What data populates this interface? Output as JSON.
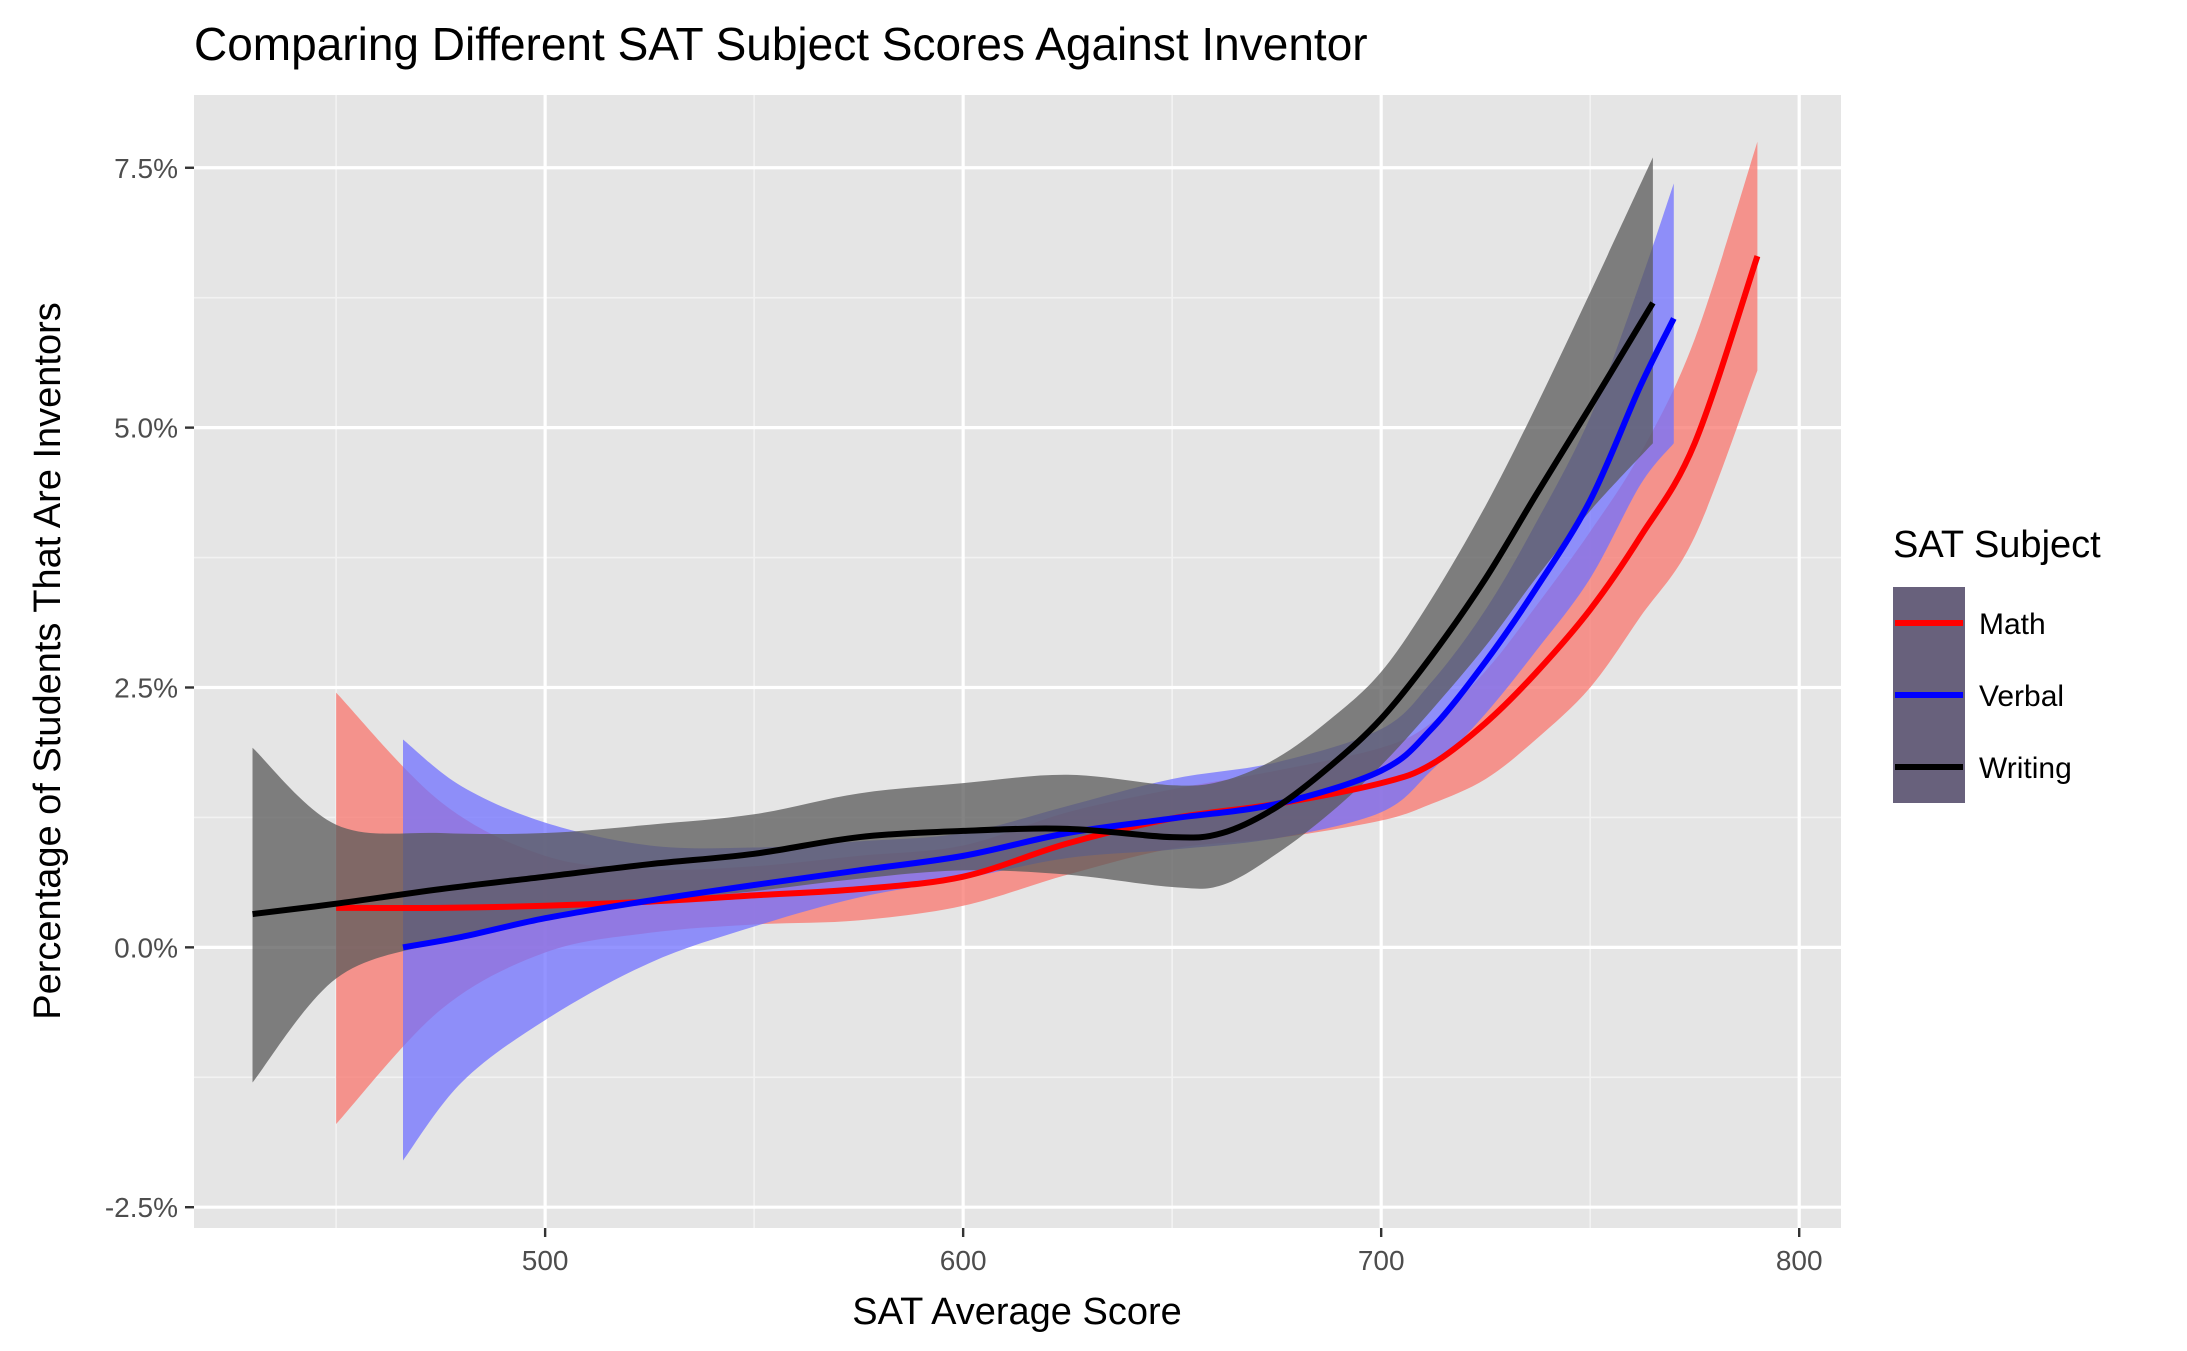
{
  "chart_data": {
    "type": "line",
    "title": "Comparing Different SAT Subject Scores Against Inventor",
    "xlabel": "SAT Average Score",
    "ylabel": "Percentage of Students That Are Inventors",
    "xlim": [
      416,
      810
    ],
    "ylim": [
      -2.7,
      8.2
    ],
    "x_ticks": [
      500,
      600,
      700,
      800
    ],
    "x_tick_labels": [
      "500",
      "600",
      "700",
      "800"
    ],
    "x_minor_ticks": [
      450,
      550,
      650,
      750
    ],
    "y_ticks": [
      -2.5,
      0,
      2.5,
      5,
      7.5
    ],
    "y_tick_labels": [
      "-2.5%",
      "0.0%",
      "2.5%",
      "5.0%",
      "7.5%"
    ],
    "y_minor_ticks": [
      -1.25,
      1.25,
      3.75,
      6.25
    ],
    "grid": true,
    "legend": {
      "title": "SAT Subject",
      "position": "right"
    },
    "series": [
      {
        "name": "Math",
        "color": "#ff0000",
        "band_color": "#f8766d",
        "x": [
          450,
          475,
          500,
          525,
          550,
          575,
          600,
          625,
          650,
          675,
          700,
          712,
          725,
          737,
          750,
          762,
          775,
          790
        ],
        "y": [
          0.38,
          0.38,
          0.4,
          0.44,
          0.5,
          0.56,
          0.68,
          1.0,
          1.24,
          1.38,
          1.58,
          1.76,
          2.16,
          2.64,
          3.25,
          3.95,
          4.85,
          6.65
        ],
        "lower": [
          -1.7,
          -0.6,
          -0.05,
          0.14,
          0.22,
          0.26,
          0.4,
          0.7,
          0.95,
          1.05,
          1.22,
          1.38,
          1.62,
          2.0,
          2.5,
          3.18,
          3.95,
          5.55
        ],
        "upper": [
          2.45,
          1.4,
          0.88,
          0.75,
          0.78,
          0.88,
          0.98,
          1.3,
          1.52,
          1.7,
          1.92,
          2.16,
          2.66,
          3.28,
          4.0,
          4.75,
          5.85,
          7.75
        ]
      },
      {
        "name": "Verbal",
        "color": "#0000ff",
        "band_color": "#7070ff",
        "x": [
          466,
          480,
          500,
          525,
          550,
          575,
          600,
          625,
          650,
          675,
          700,
          712,
          725,
          737,
          750,
          762,
          770
        ],
        "y": [
          0.0,
          0.1,
          0.28,
          0.45,
          0.6,
          0.74,
          0.88,
          1.1,
          1.24,
          1.38,
          1.7,
          2.1,
          2.75,
          3.45,
          4.3,
          5.4,
          6.05
        ],
        "lower": [
          -2.05,
          -1.3,
          -0.7,
          -0.15,
          0.2,
          0.48,
          0.66,
          0.86,
          0.94,
          1.05,
          1.3,
          1.7,
          2.25,
          2.85,
          3.55,
          4.45,
          4.85
        ],
        "upper": [
          2.0,
          1.55,
          1.2,
          0.98,
          0.96,
          1.02,
          1.1,
          1.36,
          1.62,
          1.78,
          2.1,
          2.55,
          3.25,
          4.08,
          5.1,
          6.4,
          7.35
        ]
      },
      {
        "name": "Writing",
        "color": "#000000",
        "band_color": "#5a5a5a",
        "x": [
          430,
          450,
          475,
          500,
          525,
          550,
          575,
          600,
          625,
          650,
          662,
          675,
          688,
          700,
          712,
          725,
          737,
          750,
          765
        ],
        "y": [
          0.32,
          0.42,
          0.56,
          0.68,
          0.8,
          0.9,
          1.06,
          1.12,
          1.14,
          1.06,
          1.1,
          1.35,
          1.75,
          2.2,
          2.8,
          3.55,
          4.35,
          5.2,
          6.2
        ],
        "lower": [
          -1.3,
          -0.3,
          0.05,
          0.26,
          0.44,
          0.54,
          0.66,
          0.74,
          0.7,
          0.58,
          0.6,
          0.9,
          1.3,
          1.75,
          2.28,
          2.9,
          3.55,
          4.2,
          4.85
        ],
        "upper": [
          1.92,
          1.18,
          1.1,
          1.1,
          1.18,
          1.28,
          1.48,
          1.58,
          1.66,
          1.56,
          1.6,
          1.82,
          2.2,
          2.65,
          3.35,
          4.25,
          5.2,
          6.3,
          7.6
        ]
      }
    ]
  }
}
